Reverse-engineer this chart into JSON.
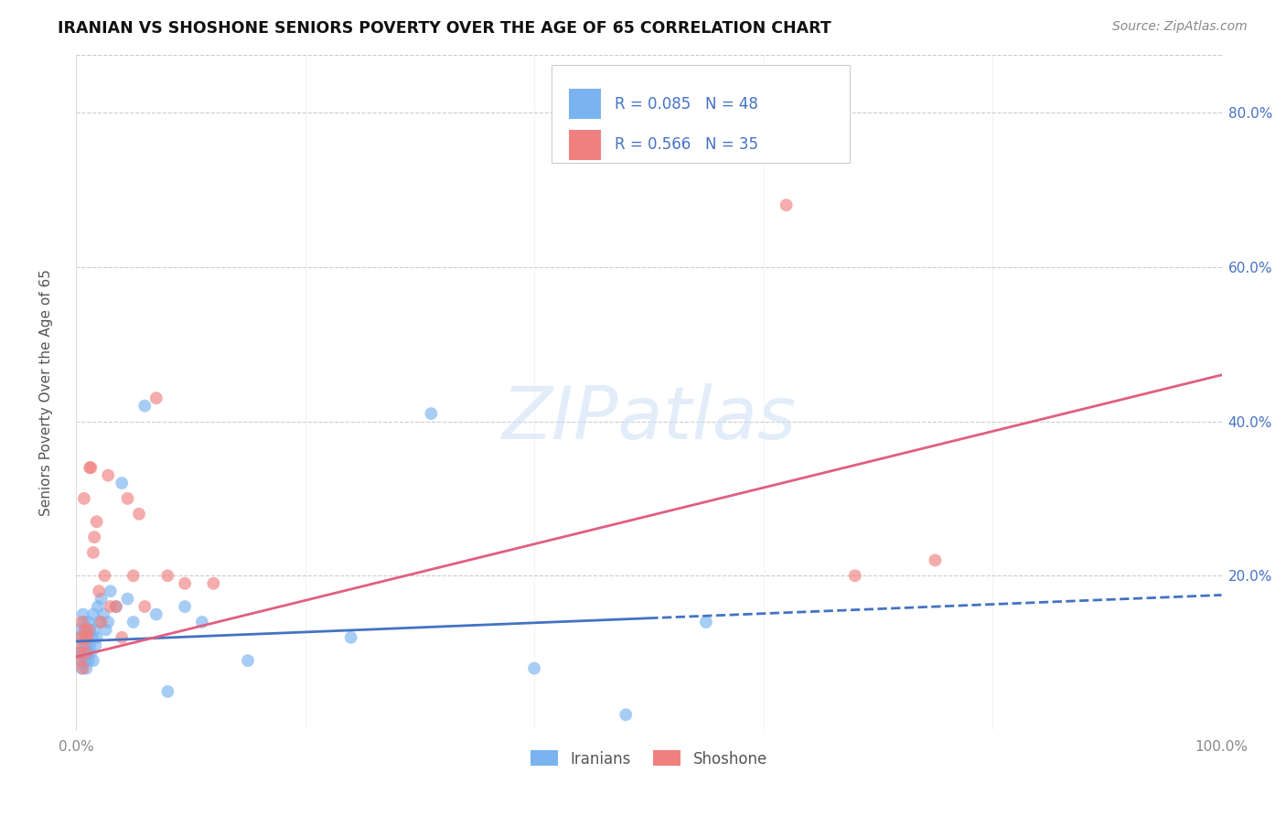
{
  "title": "IRANIAN VS SHOSHONE SENIORS POVERTY OVER THE AGE OF 65 CORRELATION CHART",
  "source": "Source: ZipAtlas.com",
  "ylabel": "Seniors Poverty Over the Age of 65",
  "xlim": [
    0,
    1.0
  ],
  "ylim": [
    0,
    0.875
  ],
  "background_color": "#ffffff",
  "watermark_text": "ZIPatlas",
  "iranians_color": "#7ab3f0",
  "shoshone_color": "#f08080",
  "iranians_line_color": "#4472c4",
  "shoshone_line_color": "#e05f7f",
  "legend_text_color": "#4472c4",
  "legend_R_iranians": "0.085",
  "legend_N_iranians": "48",
  "legend_R_shoshone": "0.566",
  "legend_N_shoshone": "35",
  "iranians_x": [
    0.002,
    0.003,
    0.004,
    0.005,
    0.005,
    0.006,
    0.006,
    0.007,
    0.007,
    0.008,
    0.008,
    0.009,
    0.009,
    0.01,
    0.01,
    0.011,
    0.011,
    0.012,
    0.012,
    0.013,
    0.014,
    0.015,
    0.015,
    0.016,
    0.017,
    0.018,
    0.019,
    0.02,
    0.022,
    0.024,
    0.026,
    0.028,
    0.03,
    0.035,
    0.04,
    0.045,
    0.05,
    0.06,
    0.07,
    0.08,
    0.095,
    0.11,
    0.15,
    0.24,
    0.31,
    0.4,
    0.48,
    0.55
  ],
  "iranians_y": [
    0.1,
    0.13,
    0.09,
    0.12,
    0.08,
    0.11,
    0.15,
    0.1,
    0.14,
    0.09,
    0.13,
    0.11,
    0.08,
    0.12,
    0.1,
    0.14,
    0.09,
    0.13,
    0.11,
    0.1,
    0.12,
    0.15,
    0.09,
    0.13,
    0.11,
    0.12,
    0.16,
    0.14,
    0.17,
    0.15,
    0.13,
    0.14,
    0.18,
    0.16,
    0.32,
    0.17,
    0.14,
    0.42,
    0.15,
    0.05,
    0.16,
    0.14,
    0.09,
    0.12,
    0.41,
    0.08,
    0.02,
    0.14
  ],
  "shoshone_x": [
    0.002,
    0.003,
    0.004,
    0.005,
    0.006,
    0.006,
    0.007,
    0.008,
    0.008,
    0.009,
    0.01,
    0.011,
    0.012,
    0.013,
    0.015,
    0.016,
    0.018,
    0.02,
    0.022,
    0.025,
    0.028,
    0.03,
    0.035,
    0.04,
    0.045,
    0.05,
    0.055,
    0.06,
    0.07,
    0.08,
    0.095,
    0.12,
    0.62,
    0.68,
    0.75
  ],
  "shoshone_y": [
    0.1,
    0.12,
    0.09,
    0.14,
    0.11,
    0.08,
    0.3,
    0.13,
    0.12,
    0.1,
    0.12,
    0.13,
    0.34,
    0.34,
    0.23,
    0.25,
    0.27,
    0.18,
    0.14,
    0.2,
    0.33,
    0.16,
    0.16,
    0.12,
    0.3,
    0.2,
    0.28,
    0.16,
    0.43,
    0.2,
    0.19,
    0.19,
    0.68,
    0.2,
    0.22
  ],
  "iranians_line": {
    "x0": 0.0,
    "y0": 0.115,
    "x1": 0.5,
    "y1": 0.145,
    "x1_dash": 1.0,
    "y1_dash": 0.175
  },
  "shoshone_line": {
    "x0": 0.0,
    "y0": 0.095,
    "x1": 1.0,
    "y1": 0.46
  }
}
